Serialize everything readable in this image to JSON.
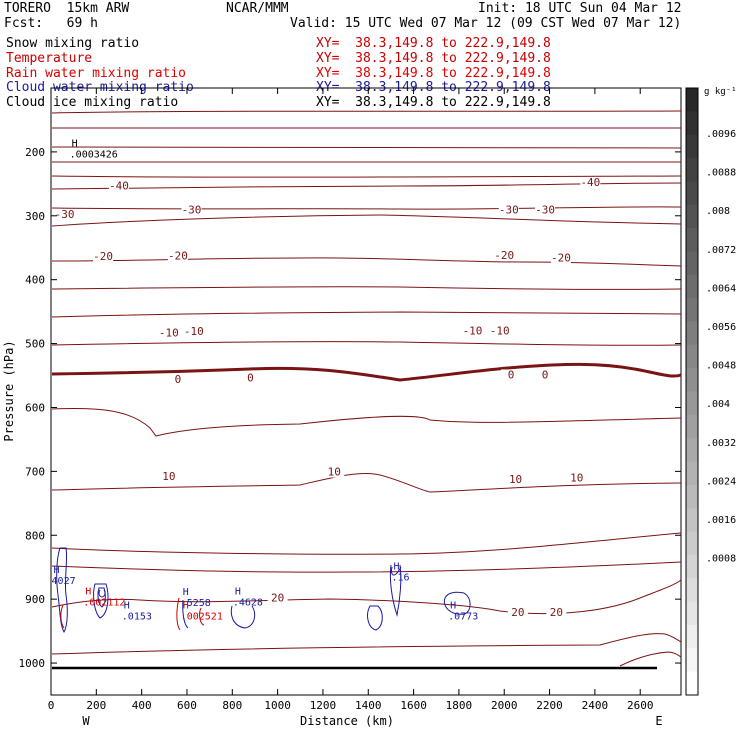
{
  "header": {
    "title": "TORERO  15km ARW",
    "center": "NCAR/MMM",
    "init": "Init: 18 UTC Sun 04 Mar 12",
    "fcst": "Fcst:   69 h",
    "valid": "Valid: 15 UTC Wed 07 Mar 12 (09 CST Wed 07 Mar 12)"
  },
  "fields": [
    {
      "name": "Snow mixing ratio",
      "xy": "",
      "color": "#000000"
    },
    {
      "name": "Temperature",
      "xy": "XY=  38.3,149.8 to 222.9,149.8",
      "color": "#c80000"
    },
    {
      "name": "Rain water mixing ratio",
      "xy": "XY=  38.3,149.8 to 222.9,149.8",
      "color": "#e00000"
    },
    {
      "name": "Cloud water mixing ratio",
      "xy": "XY=  38.3,149.8 to 222.9,149.8",
      "color": "#1a1aa0"
    },
    {
      "name": "Cloud ice mixing ratio",
      "xy": "XY=  38.3,149.8 to 222.9,149.8",
      "color": "#000000"
    }
  ],
  "first_xy": "XY=  38.3,149.8 to 222.9,149.8",
  "colorbar": {
    "unit": "g kg⁻¹",
    "labels": [
      ".0096",
      ".0088",
      ".008",
      ".0072",
      ".0064",
      ".0056",
      ".0048",
      ".004",
      ".0032",
      ".0024",
      ".0016",
      ".0008"
    ]
  },
  "chart_data": {
    "type": "cross-section contour",
    "xlabel": "Distance (km)",
    "ylabel": "Pressure (hPa)",
    "x_ticks": [
      0,
      200,
      400,
      600,
      800,
      1000,
      1200,
      1400,
      1600,
      1800,
      2000,
      2200,
      2400,
      2600
    ],
    "y_ticks": [
      200,
      300,
      400,
      500,
      600,
      700,
      800,
      900,
      1000
    ],
    "xlim": [
      0,
      2780
    ],
    "ylim": [
      1050,
      100
    ],
    "endpoints": {
      "left": "W",
      "right": "E"
    },
    "temperature_contour_labels": [
      {
        "label": "-40",
        "x": 300,
        "p": 257
      },
      {
        "label": "-40",
        "x": 2380,
        "p": 252
      },
      {
        "label": "-30",
        "x": 60,
        "p": 302
      },
      {
        "label": "-30",
        "x": 620,
        "p": 295
      },
      {
        "label": "-30",
        "x": 2020,
        "p": 295
      },
      {
        "label": "-30",
        "x": 2180,
        "p": 295
      },
      {
        "label": "-20",
        "x": 230,
        "p": 368
      },
      {
        "label": "-20",
        "x": 560,
        "p": 367
      },
      {
        "label": "-20",
        "x": 2000,
        "p": 366
      },
      {
        "label": "-20",
        "x": 2250,
        "p": 370
      },
      {
        "label": "-10",
        "x": 520,
        "p": 487
      },
      {
        "label": "-10",
        "x": 630,
        "p": 485
      },
      {
        "label": "-10",
        "x": 1860,
        "p": 484
      },
      {
        "label": "-10",
        "x": 1980,
        "p": 484
      },
      {
        "label": "0",
        "x": 560,
        "p": 560
      },
      {
        "label": "0",
        "x": 880,
        "p": 558
      },
      {
        "label": "0",
        "x": 2030,
        "p": 553
      },
      {
        "label": "0",
        "x": 2180,
        "p": 553
      },
      {
        "label": "10",
        "x": 520,
        "p": 712
      },
      {
        "label": "10",
        "x": 1250,
        "p": 705
      },
      {
        "label": "10",
        "x": 2050,
        "p": 717
      },
      {
        "label": "10",
        "x": 2320,
        "p": 714
      },
      {
        "label": "20",
        "x": 1000,
        "p": 902
      },
      {
        "label": "20",
        "x": 2060,
        "p": 925
      },
      {
        "label": "20",
        "x": 2230,
        "p": 925
      }
    ],
    "max_labels": [
      {
        "h": "H",
        "value": ".0003426",
        "x": 100,
        "p": 207,
        "color": "#000000"
      },
      {
        "h": "H",
        "value": "4027",
        "x": 20,
        "p": 875,
        "color": "#1a1aa0"
      },
      {
        "h": "H",
        "value": ".002112",
        "x": 160,
        "p": 908,
        "color": "#e00000"
      },
      {
        "h": "H",
        "value": ".0153",
        "x": 330,
        "p": 930,
        "color": "#1a1aa0"
      },
      {
        "h": "H",
        "value": ".5258",
        "x": 590,
        "p": 909,
        "color": "#1a1aa0"
      },
      {
        "h": "H",
        "value": ".002521",
        "x": 590,
        "p": 930,
        "color": "#c80000"
      },
      {
        "h": "H",
        "value": ".4628",
        "x": 820,
        "p": 908,
        "color": "#1a1aa0"
      },
      {
        "h": "H",
        "value": ".16",
        "x": 1520,
        "p": 869,
        "color": "#1a1aa0"
      },
      {
        "h": "H",
        "value": ".0773",
        "x": 1770,
        "p": 930,
        "color": "#1a1aa0"
      }
    ]
  }
}
